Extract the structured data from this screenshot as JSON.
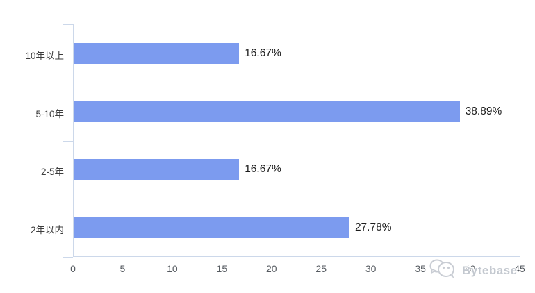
{
  "chart_data": {
    "type": "bar",
    "orientation": "horizontal",
    "title": "",
    "xlabel": "",
    "ylabel": "",
    "categories": [
      "10年以上",
      "5-10年",
      "2-5年",
      "2年以内"
    ],
    "values": [
      16.67,
      38.89,
      16.67,
      27.78
    ],
    "value_labels": [
      "16.67%",
      "38.89%",
      "16.67%",
      "27.78%"
    ],
    "x_ticks": [
      "0",
      "5",
      "10",
      "15",
      "20",
      "25",
      "30",
      "35",
      "40",
      "45"
    ],
    "x_tick_values": [
      0,
      5,
      10,
      15,
      20,
      25,
      30,
      35,
      40,
      45
    ],
    "xlim": [
      0,
      45
    ],
    "grid": false,
    "legend": "none",
    "bar_color": "#7c9bef",
    "axis_color": "#ccd8ea"
  },
  "watermark": {
    "label": "Bytebase",
    "icon": "bytebase-logo",
    "color": "#c3c8cf"
  }
}
